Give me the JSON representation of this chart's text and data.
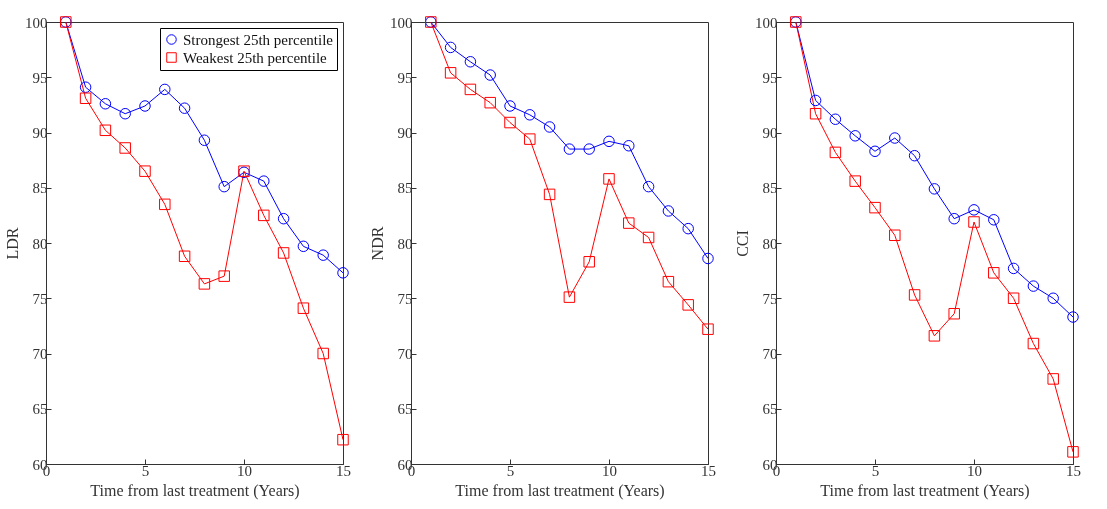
{
  "chart_data": [
    {
      "type": "line",
      "xlabel": "Time from last treatment (Years)",
      "ylabel": "LDR",
      "x": [
        1,
        2,
        3,
        4,
        5,
        6,
        7,
        8,
        9,
        10,
        11,
        12,
        13,
        14,
        15
      ],
      "xlim": [
        0,
        15
      ],
      "xticks": [
        0,
        5,
        10,
        15
      ],
      "ylim": [
        60,
        100
      ],
      "yticks": [
        60,
        65,
        70,
        75,
        80,
        85,
        90,
        95,
        100
      ],
      "legend": "top right",
      "series": [
        {
          "name": "Strongest 25th percentile",
          "color": "#0000ff",
          "marker": "circle",
          "values": [
            100,
            94.1,
            92.6,
            91.7,
            92.4,
            93.9,
            92.2,
            89.3,
            85.1,
            86.4,
            85.6,
            82.2,
            79.7,
            78.9,
            77.3
          ]
        },
        {
          "name": "Weakest 25th percentile",
          "color": "#ff0000",
          "marker": "square",
          "values": [
            100,
            93.1,
            90.2,
            88.6,
            86.5,
            83.5,
            78.8,
            76.3,
            77.0,
            86.5,
            82.5,
            79.1,
            74.1,
            70.0,
            62.2
          ]
        }
      ]
    },
    {
      "type": "line",
      "xlabel": "Time from last treatment (Years)",
      "ylabel": "NDR",
      "x": [
        1,
        2,
        3,
        4,
        5,
        6,
        7,
        8,
        9,
        10,
        11,
        12,
        13,
        14,
        15
      ],
      "xlim": [
        0,
        15
      ],
      "xticks": [
        0,
        5,
        10,
        15
      ],
      "ylim": [
        60,
        100
      ],
      "yticks": [
        60,
        65,
        70,
        75,
        80,
        85,
        90,
        95,
        100
      ],
      "series": [
        {
          "color": "#0000ff",
          "marker": "circle",
          "values": [
            100,
            97.7,
            96.4,
            95.2,
            92.4,
            91.6,
            90.5,
            88.5,
            88.5,
            89.2,
            88.8,
            85.1,
            82.9,
            81.3,
            78.6
          ]
        },
        {
          "color": "#ff0000",
          "marker": "square",
          "values": [
            100,
            95.4,
            93.9,
            92.7,
            90.9,
            89.4,
            84.4,
            75.1,
            78.3,
            85.8,
            81.8,
            80.5,
            76.5,
            74.4,
            72.2
          ]
        }
      ]
    },
    {
      "type": "line",
      "xlabel": "Time from last treatment (Years)",
      "ylabel": "CCI",
      "x": [
        1,
        2,
        3,
        4,
        5,
        6,
        7,
        8,
        9,
        10,
        11,
        12,
        13,
        14,
        15
      ],
      "xlim": [
        0,
        15
      ],
      "xticks": [
        0,
        5,
        10,
        15
      ],
      "ylim": [
        60,
        100
      ],
      "yticks": [
        60,
        65,
        70,
        75,
        80,
        85,
        90,
        95,
        100
      ],
      "series": [
        {
          "color": "#0000ff",
          "marker": "circle",
          "values": [
            100,
            92.9,
            91.2,
            89.7,
            88.3,
            89.5,
            87.9,
            84.9,
            82.2,
            83.0,
            82.1,
            77.7,
            76.1,
            75.0,
            73.3
          ]
        },
        {
          "color": "#ff0000",
          "marker": "square",
          "values": [
            100,
            91.7,
            88.2,
            85.6,
            83.2,
            80.7,
            75.3,
            71.6,
            73.6,
            81.9,
            77.3,
            75.0,
            70.9,
            67.7,
            61.1
          ]
        }
      ]
    }
  ]
}
